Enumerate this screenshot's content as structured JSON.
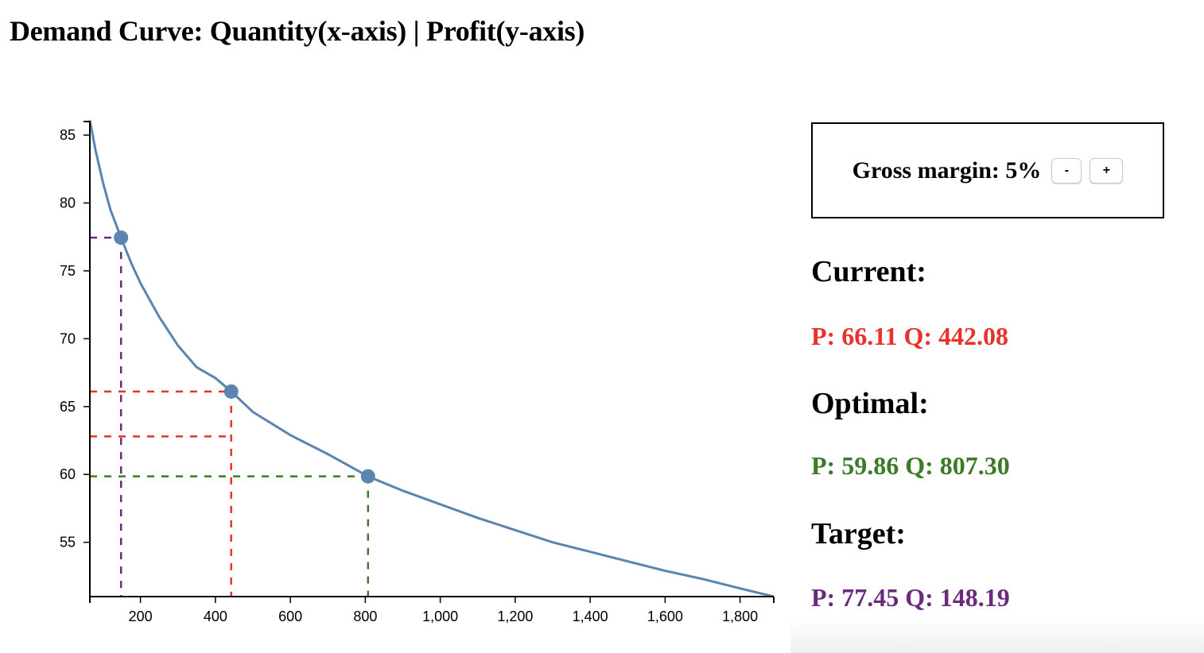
{
  "page": {
    "title": "Demand Curve: Quantity(x-axis) | Profit(y-axis)"
  },
  "controls": {
    "gross_margin_label": "Gross margin: 5%",
    "minus_label": "-",
    "plus_label": "+"
  },
  "stats": {
    "current": {
      "heading": "Current:",
      "value": "P: 66.11 Q: 442.08",
      "color": "#e8322c"
    },
    "optimal": {
      "heading": "Optimal:",
      "value": "P: 59.86 Q: 807.30",
      "color": "#3b7a26"
    },
    "target": {
      "heading": "Target:",
      "value": "P: 77.45 Q: 148.19",
      "color": "#6b2a7c"
    }
  },
  "chart_data": {
    "type": "line",
    "title": "Demand Curve: Quantity(x-axis) | Profit(y-axis)",
    "xlabel": "Quantity",
    "ylabel": "Profit",
    "xlim": [
      65,
      1890
    ],
    "ylim": [
      51,
      86
    ],
    "x_ticks": [
      200,
      400,
      600,
      800,
      1000,
      1200,
      1400,
      1600,
      1800
    ],
    "x_tick_labels": [
      "200",
      "400",
      "600",
      "800",
      "1,000",
      "1,200",
      "1,400",
      "1,600",
      "1,800"
    ],
    "y_ticks": [
      55,
      60,
      65,
      70,
      75,
      80,
      85
    ],
    "y_tick_labels": [
      "55",
      "60",
      "65",
      "70",
      "75",
      "80",
      "85"
    ],
    "line_color": "#5b84b1",
    "series": [
      {
        "x": [
          65,
          80,
          100,
          120,
          148.19,
          175,
          200,
          250,
          300,
          350,
          400,
          442.08,
          500,
          600,
          700,
          807.3,
          900,
          1000,
          1100,
          1200,
          1300,
          1400,
          1500,
          1600,
          1700,
          1800,
          1890
        ],
        "y": [
          86.1,
          83.9,
          81.5,
          79.5,
          77.45,
          75.6,
          74.1,
          71.6,
          69.5,
          67.9,
          67.1,
          66.11,
          64.6,
          62.9,
          61.5,
          59.86,
          58.8,
          57.8,
          56.8,
          55.9,
          55.0,
          54.3,
          53.6,
          52.9,
          52.3,
          51.6,
          51.0
        ]
      }
    ],
    "markers": [
      {
        "name": "Target",
        "x": 148.19,
        "y": 77.45,
        "color": "#6b2a7c"
      },
      {
        "name": "Current",
        "x": 442.08,
        "y": 66.11,
        "color": "#e8322c"
      },
      {
        "name": "Optimal",
        "x": 807.3,
        "y": 59.86,
        "color": "#3b7a26"
      }
    ],
    "extra_reference_y": {
      "value": 62.8,
      "x_end": 442.08,
      "color": "#e8322c"
    },
    "grid": false,
    "legend": "none"
  }
}
